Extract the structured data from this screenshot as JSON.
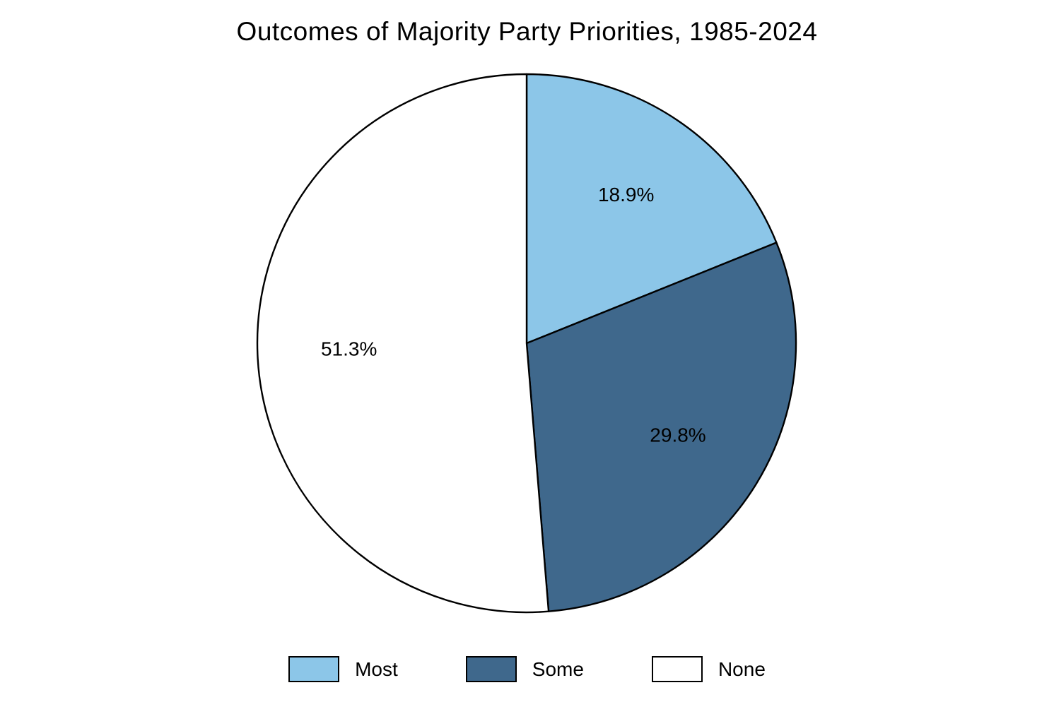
{
  "title": "Outcomes of Majority Party Priorities, 1985-2024",
  "chart_data": {
    "type": "pie",
    "title": "Outcomes of Majority Party Priorities, 1985-2024",
    "labels": [
      "Most",
      "Some",
      "None"
    ],
    "values": [
      18.9,
      29.8,
      51.3
    ],
    "value_labels": [
      "18.9%",
      "29.8%",
      "51.3%"
    ],
    "colors": [
      "#8CC6E8",
      "#3F688C",
      "#FFFFFF"
    ],
    "edge_color": "#000000",
    "text_color": "#000000",
    "start_angle_deg": 0,
    "direction": "clockwise",
    "legend_position": "bottom",
    "label_radius_fraction": 0.66
  },
  "legend": {
    "items": [
      {
        "label": "Most",
        "color": "#8CC6E8"
      },
      {
        "label": "Some",
        "color": "#3F688C"
      },
      {
        "label": "None",
        "color": "#FFFFFF"
      }
    ]
  }
}
